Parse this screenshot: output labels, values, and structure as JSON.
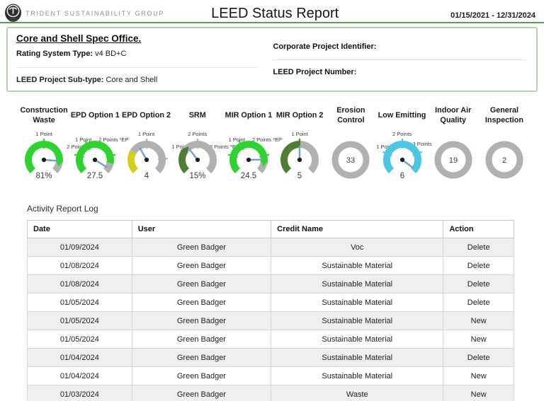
{
  "header": {
    "company": "TRIDENT SUSTAINABILITY GROUP",
    "title": "LEED Status Report",
    "date_range": "01/15/2021 - 12/31/2024"
  },
  "colors": {
    "accent_rule": "#55a055",
    "box_border": "#b5d3aa",
    "row_alt": "#efefef",
    "gauge_gray": "#b1b1b1",
    "gauge_green": "#2fd32f",
    "gauge_dark_green": "#4e7d33",
    "gauge_yellow": "#d4ce20",
    "gauge_cyan": "#4cc6e2",
    "needle": "#6f9fd8"
  },
  "project": {
    "name": "Core and Shell Spec Office.",
    "rating_system_label": "Rating System Type:",
    "rating_system_value": "v4 BD+C",
    "subtype_label": "LEED Project Sub-type:",
    "subtype_value": "Core and Shell",
    "corporate_id_label": "Corporate Project Identifier:",
    "leed_number_label": "LEED Project Number:"
  },
  "chart_data": [
    {
      "type": "gauge",
      "label": "Construction Waste",
      "value": "81%",
      "needle": 0.85,
      "segments": [
        {
          "from": 0,
          "to": 0.86,
          "color": "#2fd32f"
        },
        {
          "from": 0.86,
          "to": 1,
          "color": "#b1b1b1"
        }
      ],
      "ticks": [
        {
          "t": 0.5,
          "color": "#2fd32f"
        }
      ],
      "arrow": {
        "t": 0.84,
        "color": "#2fd32f"
      },
      "labels": [
        {
          "text": "1 Point",
          "pos": "top"
        }
      ]
    },
    {
      "type": "gauge",
      "label": "EPD Option 1",
      "value": "27.5",
      "needle": 0.95,
      "segments": [
        {
          "from": 0,
          "to": 0.88,
          "color": "#2fd32f"
        },
        {
          "from": 0.88,
          "to": 1,
          "color": "#b1b1b1"
        }
      ],
      "ticks": [
        {
          "t": 0.22,
          "color": "#2fd32f"
        },
        {
          "t": 0.4,
          "color": "#2fd32f"
        },
        {
          "t": 0.78,
          "color": "#2fd32f"
        }
      ],
      "labels": [
        {
          "text": "1 Point",
          "pos": "topleft"
        },
        {
          "text": "2 Points *EP",
          "pos": "topright"
        },
        {
          "text": "2 Points",
          "pos": "left"
        }
      ]
    },
    {
      "type": "gauge",
      "label": "EPD Option 2",
      "value": "4",
      "needle": 0.39,
      "segments": [
        {
          "from": 0,
          "to": 0.28,
          "color": "#d4ce20"
        },
        {
          "from": 0.28,
          "to": 1,
          "color": "#b1b1b1"
        }
      ],
      "ticks": [
        {
          "t": 0.5,
          "color": "#b1b1b1"
        },
        {
          "t": 0.82,
          "color": "#b1b1b1"
        }
      ],
      "labels": [
        {
          "text": "1 Point",
          "pos": "top"
        }
      ]
    },
    {
      "type": "gauge",
      "label": "SRM",
      "value": "15%",
      "needle": 0.36,
      "segments": [
        {
          "from": 0,
          "to": 0.3,
          "color": "#4e7d33"
        },
        {
          "from": 0.3,
          "to": 1,
          "color": "#b1b1b1"
        }
      ],
      "ticks": [
        {
          "t": 0.5,
          "color": "#b1b1b1"
        }
      ],
      "arrow": {
        "t": 0.29,
        "color": "#4e7d33"
      },
      "labels": [
        {
          "text": "2 Points",
          "pos": "top"
        },
        {
          "text": "1 Point",
          "pos": "left"
        }
      ]
    },
    {
      "type": "gauge",
      "label": "MIR Option 1",
      "value": "24.5",
      "needle": 0.83,
      "segments": [
        {
          "from": 0,
          "to": 0.87,
          "color": "#2fd32f"
        },
        {
          "from": 0.87,
          "to": 1,
          "color": "#b1b1b1"
        }
      ],
      "ticks": [
        {
          "t": 0.22,
          "color": "#2fd32f"
        },
        {
          "t": 0.4,
          "color": "#2fd32f"
        },
        {
          "t": 0.78,
          "color": "#2fd32f"
        }
      ],
      "arrow": {
        "t": 0.84,
        "color": "#2fd32f"
      },
      "labels": [
        {
          "text": "1 Point",
          "pos": "topleft"
        },
        {
          "text": "2 Points *EP",
          "pos": "topright"
        },
        {
          "text": "3 Points *EP",
          "pos": "left"
        }
      ]
    },
    {
      "type": "gauge",
      "label": "MIR Option 2",
      "value": "5",
      "needle": 0.5,
      "segments": [
        {
          "from": 0,
          "to": 0.5,
          "color": "#4e7d33"
        },
        {
          "from": 0.5,
          "to": 1,
          "color": "#b1b1b1"
        }
      ],
      "ticks": [
        {
          "t": 0.5,
          "color": "#4e7d33"
        }
      ],
      "labels": [
        {
          "text": "1 Point",
          "pos": "top"
        }
      ]
    },
    {
      "type": "ring",
      "label": "Erosion Control",
      "value": "33",
      "color": "#b1b1b1"
    },
    {
      "type": "gauge",
      "label": "Low Emitting",
      "value": "6",
      "needle": 0.97,
      "segments": [
        {
          "from": 0,
          "to": 1,
          "color": "#4cc6e2"
        }
      ],
      "ticks": [
        {
          "t": 0.25,
          "color": "#4cc6e2"
        },
        {
          "t": 0.5,
          "color": "#4cc6e2"
        },
        {
          "t": 0.75,
          "color": "#4cc6e2"
        }
      ],
      "labels": [
        {
          "text": "2 Points",
          "pos": "top"
        },
        {
          "text": "1 Point",
          "pos": "left"
        },
        {
          "text": "3 Points",
          "pos": "right"
        }
      ]
    },
    {
      "type": "ring",
      "label": "Indoor Air Quality",
      "value": "19",
      "color": "#b1b1b1"
    },
    {
      "type": "ring",
      "label": "General Inspection",
      "value": "2",
      "color": "#b1b1b1"
    }
  ],
  "activity": {
    "title": "Activity Report Log",
    "columns": [
      "Date",
      "User",
      "Credit Name",
      "Action"
    ],
    "rows": [
      [
        "01/09/2024",
        "Green Badger",
        "Voc",
        "Delete"
      ],
      [
        "01/08/2024",
        "Green Badger",
        "Sustainable Material",
        "Delete"
      ],
      [
        "01/08/2024",
        "Green Badger",
        "Sustainable Material",
        "Delete"
      ],
      [
        "01/05/2024",
        "Green Badger",
        "Sustainable Material",
        "Delete"
      ],
      [
        "01/05/2024",
        "Green Badger",
        "Sustainable Material",
        "New"
      ],
      [
        "01/05/2024",
        "Green Badger",
        "Sustainable Material",
        "New"
      ],
      [
        "01/04/2024",
        "Green Badger",
        "Sustainable Material",
        "Delete"
      ],
      [
        "01/04/2024",
        "Green Badger",
        "Sustainable Material",
        "New"
      ],
      [
        "01/03/2024",
        "Green Badger",
        "Waste",
        "New"
      ],
      [
        "",
        "",
        "",
        ""
      ]
    ]
  }
}
